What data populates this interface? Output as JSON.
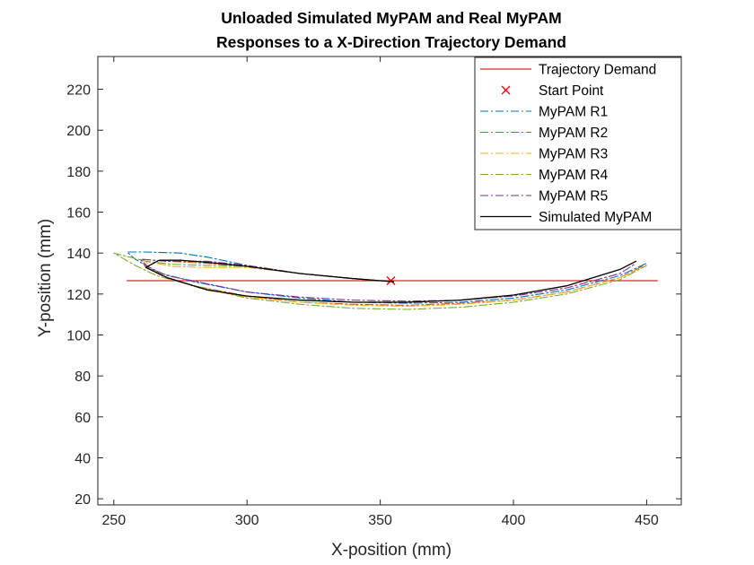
{
  "chart_data": {
    "type": "line",
    "title": [
      "Unloaded Simulated MyPAM and Real MyPAM",
      "Responses to a X-Direction Trajectory Demand"
    ],
    "xlabel": "X-position (mm)",
    "ylabel": "Y-position (mm)",
    "xlim": [
      244,
      463
    ],
    "ylim": [
      17,
      236
    ],
    "xticks": [
      250,
      300,
      350,
      400,
      450
    ],
    "yticks": [
      20,
      40,
      60,
      80,
      100,
      120,
      140,
      160,
      180,
      200,
      220
    ],
    "grid": false,
    "legend_position": "top-right",
    "series": [
      {
        "name": "Trajectory Demand",
        "color": "#d62728",
        "dash": "solid",
        "marker": "none",
        "points": [
          [
            255,
            126.5
          ],
          [
            454,
            126.5
          ]
        ]
      },
      {
        "name": "Start Point",
        "color": "#ff0000",
        "dash": "none",
        "marker": "x",
        "points": [
          [
            354,
            126.5
          ]
        ]
      },
      {
        "name": "MyPAM R1",
        "color": "#0072bd",
        "dash": "dashdot",
        "marker": "none",
        "points": [
          [
            355,
            126
          ],
          [
            340,
            127.5
          ],
          [
            320,
            130
          ],
          [
            300,
            134
          ],
          [
            285,
            138
          ],
          [
            275,
            140
          ],
          [
            262,
            140.5
          ],
          [
            255,
            140.5
          ],
          [
            258,
            137
          ],
          [
            262,
            134
          ],
          [
            268,
            130
          ],
          [
            280,
            126
          ],
          [
            300,
            121
          ],
          [
            320,
            118
          ],
          [
            340,
            116
          ],
          [
            360,
            115.5
          ],
          [
            380,
            116
          ],
          [
            400,
            118
          ],
          [
            420,
            122
          ],
          [
            440,
            129
          ],
          [
            450,
            135
          ]
        ]
      },
      {
        "name": "MyPAM R2",
        "color": "#d95319",
        "dash": "dashdot",
        "marker": "none",
        "points": [
          [
            355,
            126
          ],
          [
            340,
            127.5
          ],
          [
            320,
            130
          ],
          [
            300,
            133.5
          ],
          [
            285,
            135
          ],
          [
            270,
            136
          ],
          [
            260,
            137
          ],
          [
            262,
            133
          ],
          [
            268,
            129
          ],
          [
            280,
            124
          ],
          [
            300,
            119
          ],
          [
            320,
            116
          ],
          [
            340,
            115
          ],
          [
            360,
            114.5
          ],
          [
            380,
            115.5
          ],
          [
            400,
            117
          ],
          [
            420,
            121
          ],
          [
            440,
            128
          ],
          [
            449,
            134
          ]
        ]
      },
      {
        "name": "MyPAM R3",
        "color": "#edb120",
        "dash": "dashdot",
        "marker": "none",
        "points": [
          [
            355,
            126
          ],
          [
            340,
            127.5
          ],
          [
            320,
            130
          ],
          [
            300,
            133
          ],
          [
            285,
            133
          ],
          [
            272,
            133.5
          ],
          [
            262,
            136
          ],
          [
            264,
            132
          ],
          [
            270,
            128
          ],
          [
            282,
            123
          ],
          [
            300,
            118.5
          ],
          [
            320,
            116
          ],
          [
            340,
            114.5
          ],
          [
            360,
            114
          ],
          [
            380,
            115
          ],
          [
            400,
            117
          ],
          [
            420,
            121
          ],
          [
            440,
            128
          ],
          [
            448,
            133
          ]
        ]
      },
      {
        "name": "MyPAM R4",
        "color": "#77ac30",
        "dash": "dashdot",
        "marker": "none",
        "points": [
          [
            355,
            126
          ],
          [
            340,
            127.5
          ],
          [
            320,
            130
          ],
          [
            300,
            133.5
          ],
          [
            285,
            134
          ],
          [
            272,
            134.5
          ],
          [
            262,
            136
          ],
          [
            250,
            140
          ],
          [
            258,
            134
          ],
          [
            266,
            129
          ],
          [
            280,
            124
          ],
          [
            300,
            118
          ],
          [
            320,
            115
          ],
          [
            340,
            113
          ],
          [
            360,
            112.5
          ],
          [
            380,
            113.5
          ],
          [
            400,
            116
          ],
          [
            420,
            120
          ],
          [
            440,
            127
          ],
          [
            450,
            134
          ]
        ]
      },
      {
        "name": "MyPAM R5",
        "color": "#7e2f8e",
        "dash": "dashdot",
        "marker": "none",
        "points": [
          [
            355,
            126
          ],
          [
            340,
            127.5
          ],
          [
            320,
            130
          ],
          [
            300,
            134
          ],
          [
            285,
            136
          ],
          [
            270,
            136
          ],
          [
            260,
            137
          ],
          [
            263,
            133
          ],
          [
            270,
            129
          ],
          [
            285,
            125
          ],
          [
            300,
            121
          ],
          [
            320,
            118.5
          ],
          [
            340,
            117
          ],
          [
            360,
            116.5
          ],
          [
            380,
            117
          ],
          [
            400,
            119
          ],
          [
            420,
            123
          ],
          [
            440,
            130
          ],
          [
            446,
            135
          ]
        ]
      },
      {
        "name": "Simulated MyPAM",
        "color": "#000000",
        "dash": "solid",
        "marker": "none",
        "points": [
          [
            355,
            126
          ],
          [
            340,
            127.5
          ],
          [
            320,
            130
          ],
          [
            300,
            133.5
          ],
          [
            285,
            135.5
          ],
          [
            275,
            136.5
          ],
          [
            267,
            136.5
          ],
          [
            262,
            133
          ],
          [
            270,
            128
          ],
          [
            285,
            122
          ],
          [
            300,
            119
          ],
          [
            320,
            117
          ],
          [
            340,
            116
          ],
          [
            360,
            116
          ],
          [
            380,
            117
          ],
          [
            400,
            119.5
          ],
          [
            420,
            124
          ],
          [
            440,
            132
          ],
          [
            446,
            136
          ]
        ]
      }
    ]
  }
}
